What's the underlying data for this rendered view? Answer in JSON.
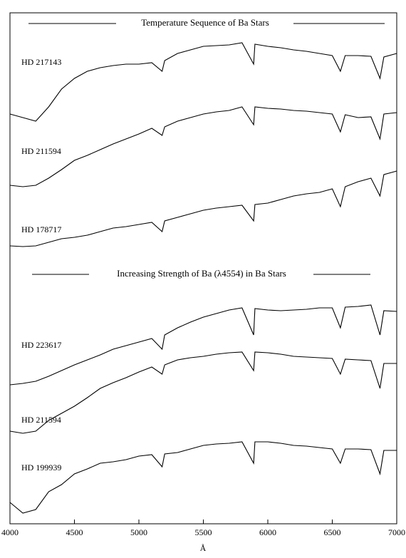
{
  "chart_data": {
    "type": "line",
    "annotations": [
      "Temperature Sequence of Ba Stars",
      "Increasing Strength of Ba (λ4554) in Ba Stars"
    ],
    "xlabel": "Å",
    "x": [
      4000,
      4100,
      4200,
      4300,
      4400,
      4500,
      4600,
      4700,
      4800,
      4900,
      5000,
      5100,
      5180,
      5200,
      5300,
      5400,
      5500,
      5600,
      5700,
      5800,
      5890,
      5900,
      6000,
      6100,
      6200,
      6300,
      6400,
      6500,
      6563,
      6600,
      6700,
      6800,
      6870,
      6900,
      7000
    ],
    "xlim": [
      4000,
      7000
    ],
    "xticks": [
      4000,
      4500,
      5000,
      5500,
      6000,
      6500,
      7000
    ],
    "ylim": [
      0,
      717
    ],
    "series": [
      {
        "name": "HD 217143",
        "color": "#000000",
        "values": [
          575,
          570,
          565,
          585,
          610,
          625,
          635,
          640,
          643,
          645,
          645,
          647,
          635,
          650,
          660,
          665,
          670,
          671,
          672,
          675,
          645,
          673,
          670,
          668,
          665,
          663,
          660,
          657,
          635,
          657,
          657,
          656,
          625,
          655,
          660
        ]
      },
      {
        "name": "HD 211594",
        "color": "#000000",
        "values": [
          475,
          473,
          475,
          485,
          497,
          510,
          517,
          525,
          533,
          540,
          547,
          555,
          545,
          557,
          565,
          570,
          575,
          578,
          580,
          585,
          560,
          585,
          583,
          582,
          580,
          579,
          577,
          575,
          550,
          574,
          570,
          571,
          540,
          575,
          577
        ]
      },
      {
        "name": "HD 178717",
        "color": "#000000",
        "values": [
          390,
          389,
          390,
          395,
          400,
          402,
          405,
          410,
          415,
          417,
          420,
          423,
          410,
          425,
          430,
          435,
          440,
          443,
          445,
          447,
          425,
          448,
          450,
          455,
          460,
          463,
          465,
          470,
          445,
          473,
          480,
          485,
          460,
          490,
          495
        ]
      },
      {
        "name": "HD 223617",
        "color": "#000000",
        "values": [
          195,
          197,
          200,
          207,
          215,
          223,
          230,
          237,
          245,
          250,
          255,
          260,
          245,
          265,
          275,
          283,
          290,
          295,
          300,
          303,
          265,
          302,
          300,
          299,
          300,
          301,
          303,
          303,
          275,
          304,
          305,
          307,
          265,
          299,
          298
        ]
      },
      {
        "name": "HD 211594",
        "color": "#000000",
        "values": [
          130,
          127,
          130,
          145,
          155,
          165,
          177,
          190,
          198,
          205,
          213,
          220,
          210,
          223,
          230,
          233,
          235,
          238,
          240,
          241,
          215,
          241,
          240,
          238,
          235,
          234,
          233,
          232,
          210,
          231,
          230,
          229,
          190,
          225,
          225
        ]
      },
      {
        "name": "HD 199939",
        "color": "#000000",
        "values": [
          30,
          15,
          20,
          45,
          55,
          70,
          77,
          85,
          87,
          90,
          95,
          97,
          80,
          98,
          100,
          105,
          110,
          112,
          113,
          115,
          85,
          115,
          115,
          113,
          110,
          109,
          107,
          105,
          85,
          105,
          105,
          104,
          70,
          103,
          103
        ]
      }
    ]
  }
}
